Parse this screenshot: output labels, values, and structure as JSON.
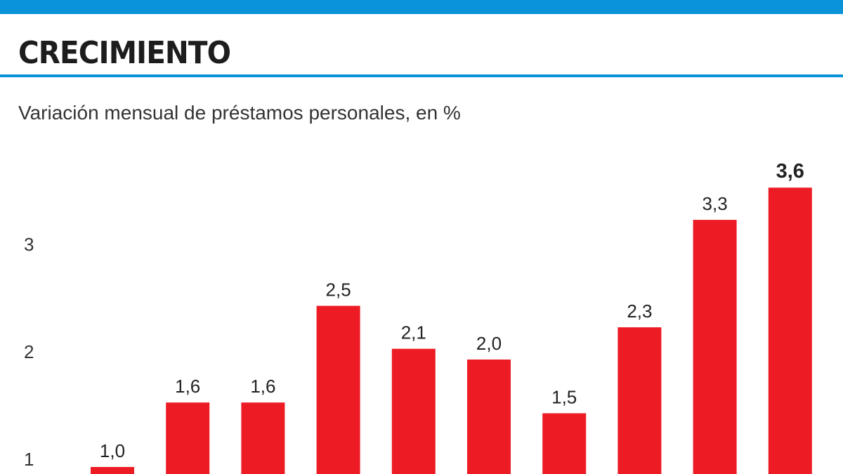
{
  "chart_data": {
    "type": "bar",
    "title": "CRECIMIENTO",
    "subtitle": "Variación mensual de préstamos personales, en %",
    "xlabel": "",
    "ylabel": "",
    "ylim": [
      0,
      3.6
    ],
    "yticks": [
      "1",
      "2",
      "3"
    ],
    "ytick_values": [
      1,
      2,
      3
    ],
    "values": [
      1.0,
      1.6,
      1.6,
      2.5,
      2.1,
      2.0,
      1.5,
      2.3,
      3.3,
      3.6
    ],
    "labels": [
      "1,0",
      "1,6",
      "1,6",
      "2,5",
      "2,1",
      "2,0",
      "1,5",
      "2,3",
      "3,3",
      "3,6"
    ],
    "highlight_last": true,
    "bar_color": "#ed1c24",
    "accent_color": "#0a93d9",
    "grid": false
  }
}
